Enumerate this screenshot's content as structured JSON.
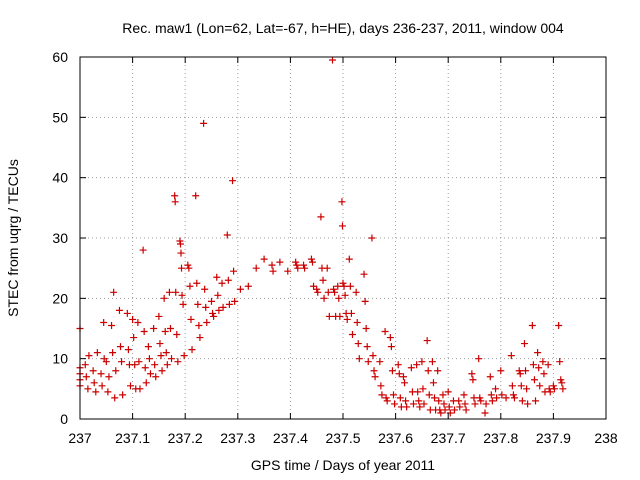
{
  "chart_data": {
    "type": "scatter",
    "title": "Rec. maw1 (Lon=62, Lat=-67, h=HE), days 236-237, 2011, window 004",
    "xlabel": "GPS time / Days of year 2011",
    "ylabel": "STEC from uqrg / TECUs",
    "xlim": [
      237,
      238
    ],
    "ylim": [
      0,
      60
    ],
    "xticks": [
      "237",
      "237.1",
      "237.2",
      "237.3",
      "237.4",
      "237.5",
      "237.6",
      "237.7",
      "237.8",
      "237.9",
      "238"
    ],
    "yticks": [
      "0",
      "10",
      "20",
      "30",
      "40",
      "50",
      "60"
    ],
    "grid": true,
    "marker": "+",
    "color": "#cc0000",
    "series": [
      {
        "points": [
          [
            237.0,
            15.0
          ],
          [
            237.0,
            8.5
          ],
          [
            237.0,
            7.5
          ],
          [
            237.0,
            6.5
          ],
          [
            237.0,
            5.5
          ],
          [
            237.01,
            9.0
          ],
          [
            237.012,
            7.0
          ],
          [
            237.015,
            5.0
          ],
          [
            237.017,
            10.5
          ],
          [
            237.025,
            8.0
          ],
          [
            237.027,
            6.0
          ],
          [
            237.03,
            4.5
          ],
          [
            237.033,
            11.0
          ],
          [
            237.04,
            7.5
          ],
          [
            237.042,
            5.5
          ],
          [
            237.045,
            16.0
          ],
          [
            237.046,
            10.0
          ],
          [
            237.05,
            9.5
          ],
          [
            237.053,
            4.5
          ],
          [
            237.055,
            7.0
          ],
          [
            237.06,
            15.5
          ],
          [
            237.062,
            11.0
          ],
          [
            237.064,
            21.0
          ],
          [
            237.066,
            3.5
          ],
          [
            237.068,
            8.0
          ],
          [
            237.075,
            18.0
          ],
          [
            237.077,
            12.0
          ],
          [
            237.079,
            9.5
          ],
          [
            237.081,
            4.0
          ],
          [
            237.09,
            17.5
          ],
          [
            237.092,
            11.5
          ],
          [
            237.094,
            9.0
          ],
          [
            237.096,
            5.5
          ],
          [
            237.1,
            16.5
          ],
          [
            237.102,
            13.5
          ],
          [
            237.104,
            9.0
          ],
          [
            237.106,
            5.0
          ],
          [
            237.11,
            16.0
          ],
          [
            237.112,
            9.5
          ],
          [
            237.114,
            5.0
          ],
          [
            237.12,
            28.0
          ],
          [
            237.122,
            14.5
          ],
          [
            237.124,
            8.5
          ],
          [
            237.126,
            6.0
          ],
          [
            237.13,
            12.0
          ],
          [
            237.132,
            10.0
          ],
          [
            237.134,
            7.5
          ],
          [
            237.14,
            15.0
          ],
          [
            237.142,
            9.0
          ],
          [
            237.144,
            7.0
          ],
          [
            237.15,
            17.0
          ],
          [
            237.152,
            12.5
          ],
          [
            237.154,
            10.5
          ],
          [
            237.156,
            8.0
          ],
          [
            237.16,
            20.0
          ],
          [
            237.162,
            14.5
          ],
          [
            237.164,
            11.0
          ],
          [
            237.166,
            9.0
          ],
          [
            237.17,
            21.0
          ],
          [
            237.172,
            15.0
          ],
          [
            237.174,
            10.0
          ],
          [
            237.18,
            37.0
          ],
          [
            237.181,
            36.0
          ],
          [
            237.182,
            21.0
          ],
          [
            237.184,
            14.0
          ],
          [
            237.186,
            9.5
          ],
          [
            237.19,
            29.5
          ],
          [
            237.191,
            29.0
          ],
          [
            237.192,
            27.5
          ],
          [
            237.193,
            25.0
          ],
          [
            237.194,
            20.5
          ],
          [
            237.196,
            19.0
          ],
          [
            237.198,
            10.5
          ],
          [
            237.205,
            25.5
          ],
          [
            237.207,
            25.0
          ],
          [
            237.209,
            22.0
          ],
          [
            237.211,
            16.5
          ],
          [
            237.213,
            11.5
          ],
          [
            237.22,
            37.0
          ],
          [
            237.222,
            22.5
          ],
          [
            237.224,
            19.0
          ],
          [
            237.226,
            15.5
          ],
          [
            237.228,
            13.5
          ],
          [
            237.235,
            49.0
          ],
          [
            237.237,
            21.5
          ],
          [
            237.239,
            18.5
          ],
          [
            237.241,
            16.0
          ],
          [
            237.25,
            19.5
          ],
          [
            237.252,
            17.5
          ],
          [
            237.254,
            17.0
          ],
          [
            237.26,
            23.5
          ],
          [
            237.262,
            20.5
          ],
          [
            237.264,
            18.0
          ],
          [
            237.27,
            22.5
          ],
          [
            237.272,
            18.5
          ],
          [
            237.28,
            30.5
          ],
          [
            237.282,
            23.0
          ],
          [
            237.284,
            19.0
          ],
          [
            237.29,
            39.5
          ],
          [
            237.292,
            24.5
          ],
          [
            237.294,
            19.5
          ],
          [
            237.305,
            21.5
          ],
          [
            237.32,
            22.0
          ],
          [
            237.335,
            25.0
          ],
          [
            237.35,
            26.5
          ],
          [
            237.365,
            25.5
          ],
          [
            237.367,
            24.5
          ],
          [
            237.38,
            26.0
          ],
          [
            237.395,
            24.5
          ],
          [
            237.41,
            26.0
          ],
          [
            237.412,
            25.5
          ],
          [
            237.414,
            25.0
          ],
          [
            237.425,
            25.5
          ],
          [
            237.427,
            25.0
          ],
          [
            237.44,
            26.5
          ],
          [
            237.442,
            26.0
          ],
          [
            237.444,
            22.0
          ],
          [
            237.45,
            21.5
          ],
          [
            237.452,
            21.0
          ],
          [
            237.458,
            33.5
          ],
          [
            237.46,
            25.0
          ],
          [
            237.462,
            23.0
          ],
          [
            237.464,
            20.0
          ],
          [
            237.47,
            25.0
          ],
          [
            237.472,
            21.0
          ],
          [
            237.474,
            17.0
          ],
          [
            237.48,
            59.5
          ],
          [
            237.482,
            21.5
          ],
          [
            237.484,
            21.0
          ],
          [
            237.486,
            17.0
          ],
          [
            237.49,
            22.0
          ],
          [
            237.492,
            20.0
          ],
          [
            237.494,
            17.0
          ],
          [
            237.498,
            36.0
          ],
          [
            237.499,
            32.0
          ],
          [
            237.5,
            22.5
          ],
          [
            237.502,
            22.0
          ],
          [
            237.504,
            20.5
          ],
          [
            237.506,
            17.5
          ],
          [
            237.508,
            16.5
          ],
          [
            237.512,
            26.5
          ],
          [
            237.514,
            22.0
          ],
          [
            237.516,
            17.5
          ],
          [
            237.518,
            14.0
          ],
          [
            237.525,
            21.0
          ],
          [
            237.527,
            16.0
          ],
          [
            237.529,
            12.5
          ],
          [
            237.531,
            10.0
          ],
          [
            237.54,
            24.0
          ],
          [
            237.542,
            19.5
          ],
          [
            237.544,
            15.0
          ],
          [
            237.546,
            12.0
          ],
          [
            237.548,
            9.5
          ],
          [
            237.555,
            30.0
          ],
          [
            237.557,
            10.5
          ],
          [
            237.559,
            8.0
          ],
          [
            237.561,
            7.0
          ],
          [
            237.57,
            9.5
          ],
          [
            237.572,
            5.5
          ],
          [
            237.574,
            4.0
          ],
          [
            237.58,
            14.5
          ],
          [
            237.582,
            3.5
          ],
          [
            237.584,
            3.0
          ],
          [
            237.59,
            13.5
          ],
          [
            237.592,
            12.0
          ],
          [
            237.594,
            8.0
          ],
          [
            237.596,
            4.0
          ],
          [
            237.598,
            2.5
          ],
          [
            237.605,
            9.0
          ],
          [
            237.607,
            7.5
          ],
          [
            237.609,
            3.5
          ],
          [
            237.611,
            2.0
          ],
          [
            237.615,
            7.0
          ],
          [
            237.617,
            6.0
          ],
          [
            237.619,
            3.0
          ],
          [
            237.621,
            2.0
          ],
          [
            237.63,
            8.5
          ],
          [
            237.632,
            4.5
          ],
          [
            237.634,
            2.5
          ],
          [
            237.64,
            9.0
          ],
          [
            237.642,
            4.5
          ],
          [
            237.644,
            3.0
          ],
          [
            237.646,
            2.0
          ],
          [
            237.65,
            9.5
          ],
          [
            237.652,
            5.0
          ],
          [
            237.654,
            2.5
          ],
          [
            237.66,
            13.0
          ],
          [
            237.662,
            8.0
          ],
          [
            237.664,
            4.0
          ],
          [
            237.666,
            1.5
          ],
          [
            237.67,
            9.5
          ],
          [
            237.672,
            6.0
          ],
          [
            237.674,
            3.5
          ],
          [
            237.676,
            1.5
          ],
          [
            237.68,
            8.0
          ],
          [
            237.682,
            3.0
          ],
          [
            237.684,
            1.5
          ],
          [
            237.686,
            1.0
          ],
          [
            237.69,
            4.0
          ],
          [
            237.692,
            2.5
          ],
          [
            237.694,
            1.5
          ],
          [
            237.7,
            4.5
          ],
          [
            237.702,
            2.0
          ],
          [
            237.704,
            1.0
          ],
          [
            237.71,
            3.0
          ],
          [
            237.712,
            1.5
          ],
          [
            237.72,
            3.0
          ],
          [
            237.722,
            2.0
          ],
          [
            237.73,
            4.0
          ],
          [
            237.732,
            2.5
          ],
          [
            237.734,
            1.5
          ],
          [
            237.745,
            7.5
          ],
          [
            237.747,
            6.5
          ],
          [
            237.749,
            3.5
          ],
          [
            237.751,
            2.5
          ],
          [
            237.758,
            10.0
          ],
          [
            237.76,
            3.5
          ],
          [
            237.762,
            3.0
          ],
          [
            237.77,
            1.0
          ],
          [
            237.772,
            2.5
          ],
          [
            237.78,
            7.0
          ],
          [
            237.782,
            4.0
          ],
          [
            237.784,
            3.0
          ],
          [
            237.79,
            5.0
          ],
          [
            237.792,
            3.5
          ],
          [
            237.8,
            8.0
          ],
          [
            237.802,
            4.0
          ],
          [
            237.81,
            3.5
          ],
          [
            237.82,
            10.5
          ],
          [
            237.822,
            5.5
          ],
          [
            237.824,
            4.0
          ],
          [
            237.826,
            3.5
          ],
          [
            237.835,
            8.0
          ],
          [
            237.837,
            7.5
          ],
          [
            237.839,
            5.5
          ],
          [
            237.841,
            3.0
          ],
          [
            237.845,
            12.5
          ],
          [
            237.847,
            8.0
          ],
          [
            237.849,
            5.0
          ],
          [
            237.851,
            2.5
          ],
          [
            237.86,
            15.5
          ],
          [
            237.862,
            9.0
          ],
          [
            237.864,
            6.5
          ],
          [
            237.866,
            3.0
          ],
          [
            237.87,
            11.0
          ],
          [
            237.872,
            8.5
          ],
          [
            237.874,
            5.5
          ],
          [
            237.88,
            9.5
          ],
          [
            237.882,
            7.5
          ],
          [
            237.884,
            4.5
          ],
          [
            237.89,
            9.0
          ],
          [
            237.892,
            5.0
          ],
          [
            237.894,
            4.5
          ],
          [
            237.9,
            5.5
          ],
          [
            237.902,
            5.0
          ],
          [
            237.91,
            15.5
          ],
          [
            237.912,
            9.5
          ],
          [
            237.914,
            6.5
          ],
          [
            237.916,
            6.0
          ],
          [
            237.918,
            5.0
          ]
        ]
      }
    ]
  }
}
